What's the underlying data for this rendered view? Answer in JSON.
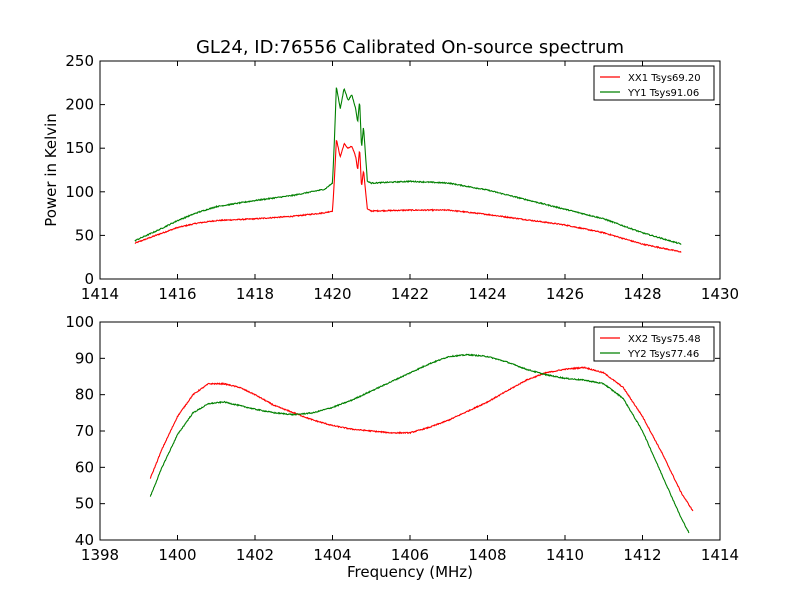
{
  "title": "GL24, ID:76556 Calibrated On-source spectrum",
  "chart_data": [
    {
      "type": "line",
      "title": "GL24, ID:76556 Calibrated On-source spectrum",
      "xlabel": "",
      "ylabel": "Power in Kelvin",
      "xlim": [
        1414,
        1430
      ],
      "ylim": [
        0,
        250
      ],
      "xticks": [
        1414,
        1416,
        1418,
        1420,
        1422,
        1424,
        1426,
        1428,
        1430
      ],
      "yticks": [
        0,
        50,
        100,
        150,
        200,
        250
      ],
      "grid": false,
      "legend_position": "top-right",
      "colors": {
        "XX1 Tsys69.20": "#ff0000",
        "YY1 Tsys91.06": "#008000"
      },
      "series": [
        {
          "name": "XX1 Tsys69.20",
          "color": "#ff0000",
          "x": [
            1414.9,
            1415.5,
            1416,
            1416.5,
            1417,
            1418,
            1419,
            1419.8,
            1420.0,
            1420.05,
            1420.1,
            1420.2,
            1420.3,
            1420.4,
            1420.5,
            1420.6,
            1420.65,
            1420.7,
            1420.75,
            1420.8,
            1420.9,
            1421.0,
            1422,
            1423,
            1424,
            1425,
            1426,
            1427,
            1428,
            1429
          ],
          "y": [
            41,
            51,
            59,
            64,
            67,
            69,
            72,
            76,
            78,
            115,
            160,
            140,
            155,
            150,
            152,
            140,
            125,
            150,
            105,
            125,
            80,
            78,
            79,
            79,
            74,
            68,
            62,
            53,
            40,
            31
          ]
        },
        {
          "name": "YY1 Tsys91.06",
          "color": "#008000",
          "x": [
            1414.9,
            1415.5,
            1416,
            1416.5,
            1417,
            1418,
            1419,
            1419.8,
            1420.0,
            1420.05,
            1420.1,
            1420.2,
            1420.3,
            1420.4,
            1420.5,
            1420.6,
            1420.65,
            1420.7,
            1420.75,
            1420.8,
            1420.9,
            1421.0,
            1422,
            1423,
            1424,
            1425,
            1426,
            1427,
            1428,
            1429
          ],
          "y": [
            44,
            56,
            67,
            76,
            83,
            90,
            96,
            103,
            110,
            160,
            221,
            195,
            219,
            205,
            211,
            195,
            180,
            205,
            150,
            175,
            112,
            110,
            112,
            110,
            102,
            91,
            80,
            69,
            53,
            40
          ]
        }
      ],
      "legend": [
        {
          "label": "XX1 Tsys69.20",
          "color": "#ff0000"
        },
        {
          "label": "YY1 Tsys91.06",
          "color": "#008000"
        }
      ]
    },
    {
      "type": "line",
      "title": "",
      "xlabel": "Frequency (MHz)",
      "ylabel": "",
      "xlim": [
        1398,
        1414
      ],
      "ylim": [
        40,
        100
      ],
      "xticks": [
        1398,
        1400,
        1402,
        1404,
        1406,
        1408,
        1410,
        1412,
        1414
      ],
      "yticks": [
        40,
        50,
        60,
        70,
        80,
        90,
        100
      ],
      "grid": false,
      "legend_position": "top-right",
      "colors": {
        "XX2 Tsys75.48": "#ff0000",
        "YY2 Tsys77.46": "#008000"
      },
      "series": [
        {
          "name": "XX2 Tsys75.48",
          "color": "#ff0000",
          "x": [
            1399.3,
            1399.6,
            1400,
            1400.4,
            1400.8,
            1401.2,
            1401.6,
            1402,
            1402.5,
            1403,
            1403.5,
            1404,
            1404.5,
            1405,
            1405.5,
            1406,
            1406.5,
            1407,
            1407.5,
            1408,
            1408.5,
            1409,
            1409.5,
            1410,
            1410.5,
            1411,
            1411.5,
            1412,
            1412.5,
            1413,
            1413.3
          ],
          "y": [
            57,
            65,
            74,
            80,
            83,
            83,
            82,
            80,
            77,
            75,
            73,
            71.5,
            70.5,
            70,
            69.5,
            69.5,
            71,
            73,
            75.5,
            78,
            81,
            84,
            86,
            87,
            87.5,
            86,
            82,
            74,
            64,
            53,
            48
          ]
        },
        {
          "name": "YY2 Tsys77.46",
          "color": "#008000",
          "x": [
            1399.3,
            1399.6,
            1400,
            1400.4,
            1400.8,
            1401.2,
            1401.6,
            1402,
            1402.5,
            1403,
            1403.5,
            1404,
            1404.5,
            1405,
            1405.5,
            1406,
            1406.5,
            1407,
            1407.5,
            1408,
            1408.5,
            1409,
            1409.5,
            1410,
            1410.5,
            1411,
            1411.5,
            1412,
            1412.5,
            1413,
            1413.2
          ],
          "y": [
            52,
            60,
            69,
            75,
            77.5,
            78,
            77,
            76,
            75,
            74.5,
            75,
            76.5,
            78.5,
            81,
            83.5,
            86,
            88.5,
            90.5,
            91,
            90.5,
            89,
            87,
            85.5,
            84.5,
            84,
            83,
            79,
            70,
            58,
            46,
            42
          ]
        }
      ],
      "legend": [
        {
          "label": "XX2 Tsys75.48",
          "color": "#ff0000"
        },
        {
          "label": "YY2 Tsys77.46",
          "color": "#008000"
        }
      ]
    }
  ]
}
